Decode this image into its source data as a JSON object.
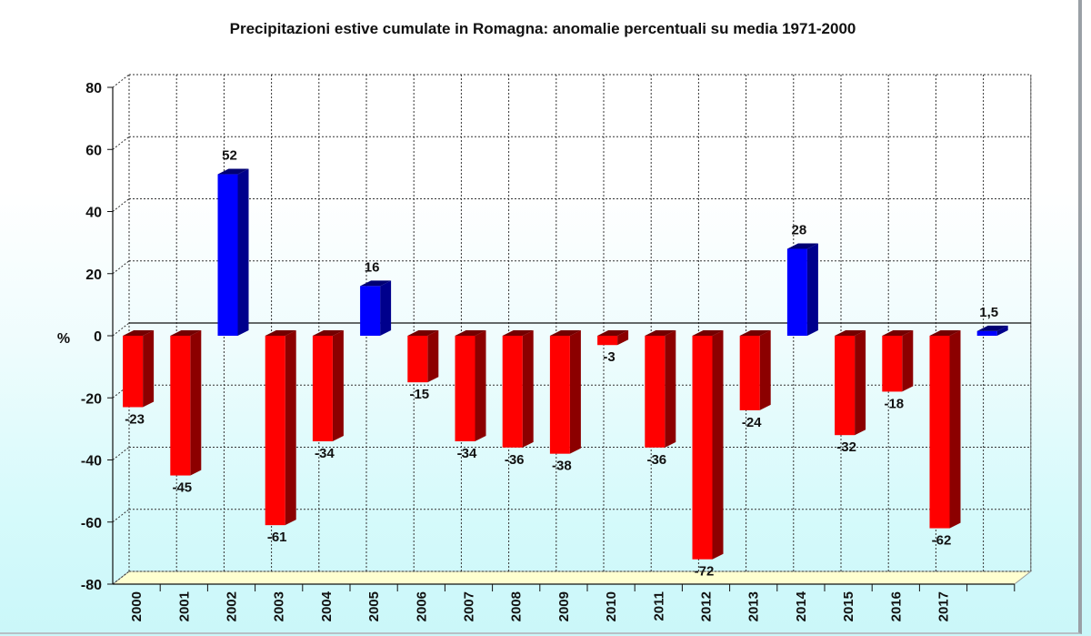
{
  "chart_data": {
    "type": "bar",
    "title": "Precipitazioni estive cumulate in Romagna: anomalie percentuali su media 1971-2000",
    "ylabel": "%",
    "xlabel": "",
    "ylim": [
      -80,
      80
    ],
    "yticks": [
      80,
      60,
      40,
      20,
      0,
      -20,
      -40,
      -60,
      -80
    ],
    "grid": true,
    "legend": "none",
    "colors": {
      "positive": "#0000ff",
      "negative": "#ff0000"
    },
    "categories": [
      "2000",
      "2001",
      "2002",
      "2003",
      "2004",
      "2005",
      "2006",
      "2007",
      "2008",
      "2009",
      "2010",
      "2011",
      "2012",
      "2013",
      "2014",
      "2015",
      "2016",
      "2017",
      ""
    ],
    "values": [
      -23,
      -45,
      52,
      -61,
      -34,
      16,
      -15,
      -34,
      -36,
      -38,
      -3,
      -36,
      -72,
      -24,
      28,
      -32,
      -18,
      -62,
      1.5
    ],
    "value_labels": [
      "-23",
      "-45",
      "52",
      "-61",
      "-34",
      "16",
      "-15",
      "-34",
      "-36",
      "-38",
      "-3",
      "-36",
      "-72",
      "-24",
      "28",
      "-32",
      "-18",
      "-62",
      "1,5"
    ]
  }
}
